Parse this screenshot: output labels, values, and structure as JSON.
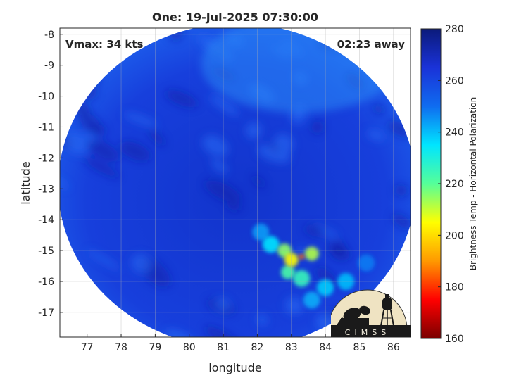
{
  "chart_data": {
    "type": "heatmap",
    "title": "One: 19-Jul-2025 07:30:00",
    "xlabel": "longitude",
    "ylabel": "latitude",
    "xlim": [
      76.2,
      86.5
    ],
    "ylim": [
      -17.8,
      -7.8
    ],
    "x_ticks": [
      77,
      78,
      79,
      80,
      81,
      82,
      83,
      84,
      85,
      86
    ],
    "y_ticks": [
      -8,
      -9,
      -10,
      -11,
      -12,
      -13,
      -14,
      -15,
      -16,
      -17
    ],
    "grid": true,
    "annotations": {
      "vmax": "Vmax: 34 kts",
      "time_away": "02:23 away"
    },
    "colorbar": {
      "label": "Brightness Temp - Horizontal Polarization",
      "range": [
        160,
        280
      ],
      "ticks": [
        160,
        180,
        200,
        220,
        240,
        260,
        280
      ],
      "colors": [
        "#7a0000",
        "#ff0000",
        "#ff9900",
        "#ffff00",
        "#55ff99",
        "#00e5ff",
        "#0f6cf0",
        "#1a32d8",
        "#0b1a7a"
      ]
    },
    "swath": {
      "center": [
        81.4,
        -12.9
      ],
      "radius_deg": 5.25,
      "background_temp": 262
    },
    "cold_clusters": [
      {
        "lon": 83.3,
        "lat": -15.2,
        "temp": 185
      },
      {
        "lon": 83.0,
        "lat": -15.3,
        "temp": 205
      },
      {
        "lon": 82.8,
        "lat": -15.0,
        "temp": 215
      },
      {
        "lon": 83.6,
        "lat": -15.1,
        "temp": 212
      },
      {
        "lon": 82.9,
        "lat": -15.7,
        "temp": 222
      },
      {
        "lon": 83.3,
        "lat": -15.9,
        "temp": 225
      },
      {
        "lon": 82.4,
        "lat": -14.8,
        "temp": 235
      },
      {
        "lon": 84.0,
        "lat": -16.2,
        "temp": 238
      },
      {
        "lon": 84.6,
        "lat": -16.0,
        "temp": 240
      },
      {
        "lon": 83.6,
        "lat": -16.6,
        "temp": 242
      },
      {
        "lon": 82.1,
        "lat": -14.4,
        "temp": 244
      },
      {
        "lon": 85.2,
        "lat": -15.4,
        "temp": 248
      }
    ]
  },
  "logo": {
    "text": "CIMSS"
  }
}
